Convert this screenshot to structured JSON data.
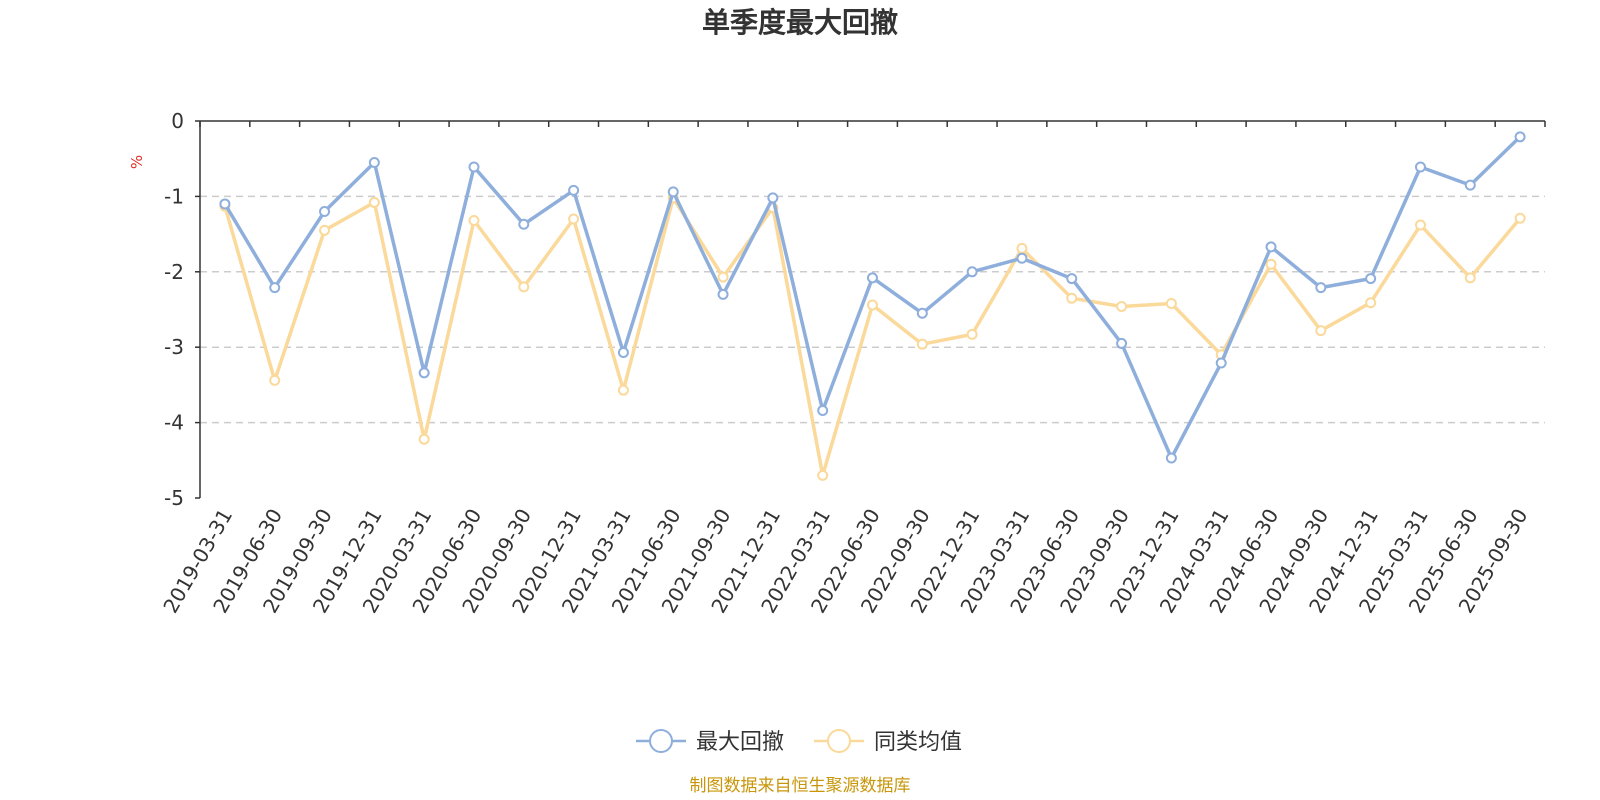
{
  "chart_data": {
    "type": "line",
    "title": "单季度最大回撤",
    "unit": "%",
    "ylim": [
      -5,
      0
    ],
    "yticks": [
      "0",
      "-1",
      "-2",
      "-3",
      "-4",
      "-5"
    ],
    "grid": true,
    "legend_position": "bottom-center",
    "categories": [
      "2019-03-31",
      "2019-06-30",
      "2019-09-30",
      "2019-12-31",
      "2020-03-31",
      "2020-06-30",
      "2020-09-30",
      "2020-12-31",
      "2021-03-31",
      "2021-06-30",
      "2021-09-30",
      "2021-12-31",
      "2022-03-31",
      "2022-06-30",
      "2022-09-30",
      "2022-12-31",
      "2023-03-31",
      "2023-06-30",
      "2023-09-30",
      "2023-12-31",
      "2024-03-31",
      "2024-06-30",
      "2024-09-30",
      "2024-12-31",
      "2025-03-31",
      "2025-06-30",
      "2025-09-30"
    ],
    "series": [
      {
        "name": "最大回撤",
        "color": "#8eaedc",
        "values": [
          -1.1,
          -2.21,
          -1.2,
          -0.55,
          -3.34,
          -0.61,
          -1.37,
          -0.92,
          -3.07,
          -0.94,
          -2.3,
          -1.02,
          -3.84,
          -2.08,
          -2.55,
          -2.0,
          -1.82,
          -2.09,
          -2.95,
          -4.47,
          -3.21,
          -1.67,
          -2.21,
          -2.09,
          -0.61,
          -0.85,
          -0.21
        ]
      },
      {
        "name": "同类均值",
        "color": "#fad99a",
        "values": [
          -1.13,
          -3.44,
          -1.45,
          -1.08,
          -4.22,
          -1.32,
          -2.2,
          -1.3,
          -3.57,
          -1.02,
          -2.07,
          -1.15,
          -4.7,
          -2.44,
          -2.96,
          -2.83,
          -1.69,
          -2.35,
          -2.46,
          -2.42,
          -3.1,
          -1.9,
          -2.78,
          -2.41,
          -1.38,
          -2.08,
          -1.29
        ]
      }
    ]
  },
  "footer": {
    "source": "制图数据来自恒生聚源数据库"
  }
}
